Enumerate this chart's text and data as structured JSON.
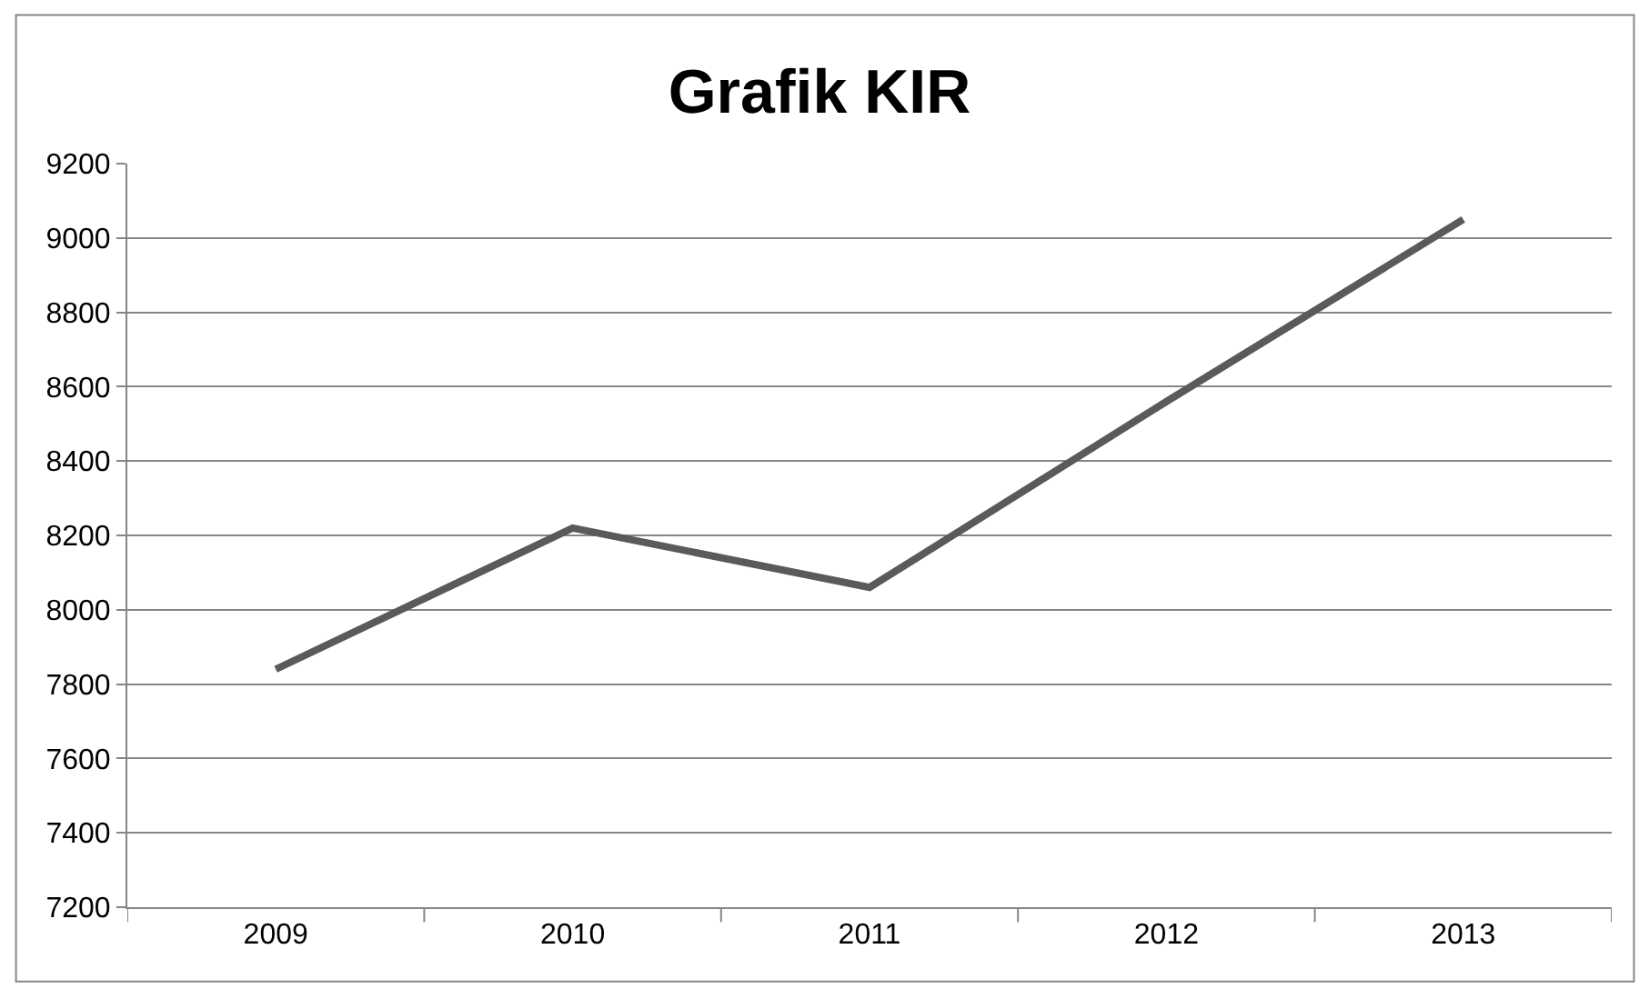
{
  "chart_data": {
    "type": "line",
    "title": "Grafik KIR",
    "categories": [
      "2009",
      "2010",
      "2011",
      "2012",
      "2013"
    ],
    "series": [
      {
        "color": "#5a5a5a",
        "values": [
          7840,
          8220,
          8060,
          8560,
          9050
        ]
      }
    ],
    "ylim": [
      7200,
      9200
    ],
    "yticks": [
      7200,
      7400,
      7600,
      7800,
      8000,
      8200,
      8400,
      8600,
      8800,
      9000,
      9200
    ],
    "grid": "y",
    "marker": "none",
    "line_style": "solid"
  }
}
